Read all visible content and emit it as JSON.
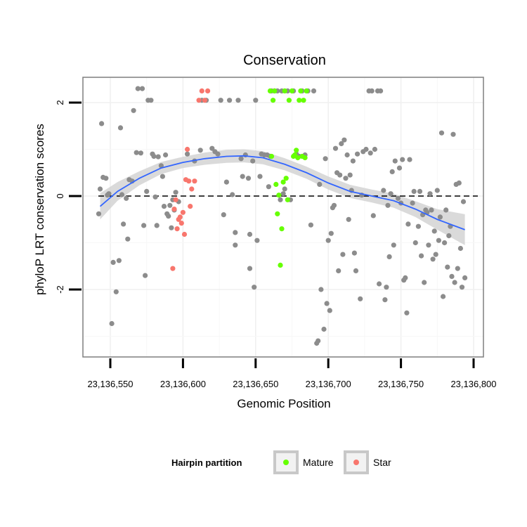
{
  "chart_data": {
    "type": "scatter",
    "title": "Conservation",
    "xlabel": "Genomic Position",
    "ylabel": "phyloP LRT conservation scores",
    "xlim": [
      23136530,
      23136800
    ],
    "ylim": [
      -3.2,
      2.5
    ],
    "x_ticks": [
      {
        "value": 23136550,
        "label": "23,136,550"
      },
      {
        "value": 23136600,
        "label": "23,136,600"
      },
      {
        "value": 23136650,
        "label": "23,136,650"
      },
      {
        "value": 23136700,
        "label": "23,136,700"
      },
      {
        "value": 23136750,
        "label": "23,136,750"
      },
      {
        "value": 23136800,
        "label": "23,136,800"
      }
    ],
    "y_ticks": [
      {
        "value": 2,
        "label": "2"
      },
      {
        "value": 0,
        "label": "0"
      },
      {
        "value": -2,
        "label": "-2"
      }
    ],
    "reference_line": {
      "y": 0,
      "style": "dashed"
    },
    "grid": true,
    "legend": {
      "title": "Hairpin partition",
      "position": "bottom",
      "entries": [
        {
          "label": "Mature",
          "color": "#66ff00"
        },
        {
          "label": "Star",
          "color": "#f8766d"
        }
      ]
    },
    "colors": {
      "other": "#8c8c8c",
      "mature": "#66ff00",
      "star": "#f8766d",
      "smooth": "#3366ff",
      "band": "#d3d3d3"
    },
    "series": [
      {
        "group": "other",
        "points": [
          [
            23136542,
            -0.38
          ],
          [
            23136543,
            0.15
          ],
          [
            23136544,
            1.55
          ],
          [
            23136545,
            0.4
          ],
          [
            23136547,
            0.38
          ],
          [
            23136548,
            0.02
          ],
          [
            23136549,
            0.05
          ],
          [
            23136551,
            -2.73
          ],
          [
            23136552,
            -1.42
          ],
          [
            23136554,
            -2.05
          ],
          [
            23136556,
            -1.38
          ],
          [
            23136557,
            1.46
          ],
          [
            23136558,
            0.03
          ],
          [
            23136559,
            -0.6
          ],
          [
            23136561,
            -0.05
          ],
          [
            23136562,
            -0.92
          ],
          [
            23136563,
            0.35
          ],
          [
            23136565,
            0.32
          ],
          [
            23136566,
            1.83
          ],
          [
            23136568,
            0.93
          ],
          [
            23136569,
            2.3
          ],
          [
            23136571,
            0.92
          ],
          [
            23136572,
            2.3
          ],
          [
            23136573,
            -0.63
          ],
          [
            23136574,
            -1.7
          ],
          [
            23136575,
            0.1
          ],
          [
            23136576,
            2.05
          ],
          [
            23136578,
            2.05
          ],
          [
            23136579,
            0.9
          ],
          [
            23136580,
            0.85
          ],
          [
            23136581,
            -0.02
          ],
          [
            23136582,
            -0.63
          ],
          [
            23136583,
            0.84
          ],
          [
            23136585,
            0.65
          ],
          [
            23136586,
            0.42
          ],
          [
            23136587,
            -0.22
          ],
          [
            23136588,
            0.88
          ],
          [
            23136589,
            -0.38
          ],
          [
            23136590,
            -0.43
          ],
          [
            23136591,
            -0.2
          ],
          [
            23136592,
            -0.68
          ],
          [
            23136593,
            -0.08
          ],
          [
            23136594,
            -0.3
          ],
          [
            23136595,
            0.08
          ],
          [
            23136597,
            -0.12
          ],
          [
            23136603,
            0.9
          ],
          [
            23136608,
            0.75
          ],
          [
            23136612,
            0.98
          ],
          [
            23136613,
            2.05
          ],
          [
            23136616,
            2.05
          ],
          [
            23136620,
            1.02
          ],
          [
            23136622,
            0.95
          ],
          [
            23136624,
            0.9
          ],
          [
            23136626,
            2.05
          ],
          [
            23136628,
            -0.4
          ],
          [
            23136630,
            0.3
          ],
          [
            23136632,
            2.05
          ],
          [
            23136634,
            0.03
          ],
          [
            23136636,
            -1.05
          ],
          [
            23136636,
            -0.78
          ],
          [
            23136638,
            2.05
          ],
          [
            23136640,
            0.8
          ],
          [
            23136641,
            0.42
          ],
          [
            23136643,
            0.88
          ],
          [
            23136645,
            0.38
          ],
          [
            23136646,
            -0.82
          ],
          [
            23136646,
            -1.55
          ],
          [
            23136648,
            0.75
          ],
          [
            23136649,
            -1.95
          ],
          [
            23136650,
            2.05
          ],
          [
            23136651,
            -0.95
          ],
          [
            23136653,
            0.42
          ],
          [
            23136654,
            0.9
          ],
          [
            23136656,
            0.88
          ],
          [
            23136658,
            0.88
          ],
          [
            23136659,
            0.2
          ],
          [
            23136660,
            0.85
          ],
          [
            23136661,
            2.25
          ],
          [
            23136663,
            2.25
          ],
          [
            23136665,
            2.25
          ],
          [
            23136667,
            -0.08
          ],
          [
            23136668,
            2.25
          ],
          [
            23136669,
            0.05
          ],
          [
            23136670,
            0.15
          ],
          [
            23136672,
            2.25
          ],
          [
            23136674,
            -0.08
          ],
          [
            23136676,
            2.25
          ],
          [
            23136678,
            0.9
          ],
          [
            23136680,
            0.85
          ],
          [
            23136682,
            2.25
          ],
          [
            23136684,
            0.88
          ],
          [
            23136686,
            2.25
          ],
          [
            23136688,
            -0.62
          ],
          [
            23136690,
            2.25
          ],
          [
            23136692,
            -3.15
          ],
          [
            23136693,
            -3.1
          ],
          [
            23136694,
            0.25
          ],
          [
            23136695,
            -2.0
          ],
          [
            23136697,
            -2.85
          ],
          [
            23136698,
            0.8
          ],
          [
            23136699,
            -2.3
          ],
          [
            23136700,
            -0.95
          ],
          [
            23136701,
            -2.45
          ],
          [
            23136702,
            -0.8
          ],
          [
            23136703,
            -0.25
          ],
          [
            23136704,
            -0.2
          ],
          [
            23136705,
            1.02
          ],
          [
            23136706,
            0.5
          ],
          [
            23136707,
            -1.6
          ],
          [
            23136708,
            0.45
          ],
          [
            23136709,
            1.12
          ],
          [
            23136710,
            -1.25
          ],
          [
            23136711,
            1.2
          ],
          [
            23136712,
            0.38
          ],
          [
            23136713,
            0.88
          ],
          [
            23136714,
            -0.5
          ],
          [
            23136715,
            0.45
          ],
          [
            23136716,
            0.12
          ],
          [
            23136717,
            0.75
          ],
          [
            23136718,
            -1.22
          ],
          [
            23136719,
            -1.6
          ],
          [
            23136720,
            0.9
          ],
          [
            23136722,
            -2.2
          ],
          [
            23136723,
            0.02
          ],
          [
            23136724,
            0.95
          ],
          [
            23136726,
            1.0
          ],
          [
            23136728,
            2.25
          ],
          [
            23136729,
            0.92
          ],
          [
            23136730,
            2.25
          ],
          [
            23136731,
            -0.42
          ],
          [
            23136732,
            1.0
          ],
          [
            23136734,
            2.25
          ],
          [
            23136735,
            -1.88
          ],
          [
            23136736,
            2.25
          ],
          [
            23136738,
            0.12
          ],
          [
            23136739,
            -2.22
          ],
          [
            23136740,
            -1.95
          ],
          [
            23136741,
            -0.2
          ],
          [
            23136742,
            -1.3
          ],
          [
            23136743,
            0.05
          ],
          [
            23136744,
            0.52
          ],
          [
            23136745,
            -1.05
          ],
          [
            23136746,
            0.75
          ],
          [
            23136748,
            -0.05
          ],
          [
            23136749,
            0.6
          ],
          [
            23136750,
            -0.15
          ],
          [
            23136751,
            0.78
          ],
          [
            23136752,
            -1.8
          ],
          [
            23136753,
            -1.75
          ],
          [
            23136754,
            -2.5
          ],
          [
            23136755,
            -0.6
          ],
          [
            23136756,
            0.78
          ],
          [
            23136758,
            -0.15
          ],
          [
            23136759,
            0.1
          ],
          [
            23136760,
            -1.0
          ],
          [
            23136762,
            -0.65
          ],
          [
            23136763,
            0.1
          ],
          [
            23136764,
            -1.28
          ],
          [
            23136765,
            -0.4
          ],
          [
            23136766,
            -1.85
          ],
          [
            23136767,
            -0.3
          ],
          [
            23136768,
            -0.35
          ],
          [
            23136769,
            -1.05
          ],
          [
            23136770,
            0.05
          ],
          [
            23136771,
            -0.3
          ],
          [
            23136772,
            -1.35
          ],
          [
            23136773,
            -0.75
          ],
          [
            23136774,
            -1.25
          ],
          [
            23136775,
            0.12
          ],
          [
            23136776,
            -0.95
          ],
          [
            23136777,
            -0.45
          ],
          [
            23136778,
            1.35
          ],
          [
            23136779,
            -2.15
          ],
          [
            23136780,
            -1.0
          ],
          [
            23136781,
            -0.3
          ],
          [
            23136782,
            -1.52
          ],
          [
            23136783,
            -0.85
          ],
          [
            23136784,
            -0.65
          ],
          [
            23136785,
            -1.72
          ],
          [
            23136786,
            1.32
          ],
          [
            23136787,
            -1.85
          ],
          [
            23136788,
            0.25
          ],
          [
            23136789,
            -1.55
          ],
          [
            23136790,
            0.28
          ],
          [
            23136791,
            -1.12
          ],
          [
            23136792,
            -1.95
          ],
          [
            23136793,
            -0.12
          ],
          [
            23136794,
            -1.75
          ]
        ]
      },
      {
        "group": "star",
        "points": [
          [
            23136593,
            -1.55
          ],
          [
            23136594,
            -0.28
          ],
          [
            23136595,
            -0.08
          ],
          [
            23136596,
            -0.7
          ],
          [
            23136597,
            -0.5
          ],
          [
            23136598,
            -0.45
          ],
          [
            23136599,
            -0.58
          ],
          [
            23136600,
            -0.35
          ],
          [
            23136601,
            -0.82
          ],
          [
            23136602,
            0.35
          ],
          [
            23136603,
            1.0
          ],
          [
            23136604,
            0.32
          ],
          [
            23136605,
            -0.22
          ],
          [
            23136606,
            0.15
          ],
          [
            23136608,
            0.32
          ],
          [
            23136611,
            2.05
          ],
          [
            23136613,
            2.25
          ],
          [
            23136615,
            2.05
          ],
          [
            23136617,
            2.25
          ]
        ]
      },
      {
        "group": "mature",
        "points": [
          [
            23136660,
            2.25
          ],
          [
            23136661,
            0.85
          ],
          [
            23136662,
            2.05
          ],
          [
            23136663,
            2.25
          ],
          [
            23136664,
            0.25
          ],
          [
            23136665,
            -0.38
          ],
          [
            23136666,
            0.02
          ],
          [
            23136667,
            -1.48
          ],
          [
            23136668,
            -0.7
          ],
          [
            23136669,
            0.3
          ],
          [
            23136670,
            2.25
          ],
          [
            23136671,
            0.38
          ],
          [
            23136672,
            -0.08
          ],
          [
            23136673,
            2.05
          ],
          [
            23136675,
            2.25
          ],
          [
            23136676,
            0.85
          ],
          [
            23136677,
            0.88
          ],
          [
            23136678,
            0.98
          ],
          [
            23136679,
            0.82
          ],
          [
            23136680,
            2.05
          ],
          [
            23136681,
            2.25
          ],
          [
            23136682,
            0.85
          ],
          [
            23136683,
            2.05
          ],
          [
            23136684,
            0.82
          ],
          [
            23136685,
            2.25
          ]
        ]
      }
    ],
    "smooth": [
      {
        "x": 23136543,
        "y": -0.22,
        "lo": -0.5,
        "hi": 0.06
      },
      {
        "x": 23136555,
        "y": 0.1,
        "lo": -0.1,
        "hi": 0.3
      },
      {
        "x": 23136570,
        "y": 0.38,
        "lo": 0.23,
        "hi": 0.53
      },
      {
        "x": 23136585,
        "y": 0.6,
        "lo": 0.47,
        "hi": 0.73
      },
      {
        "x": 23136600,
        "y": 0.72,
        "lo": 0.6,
        "hi": 0.84
      },
      {
        "x": 23136615,
        "y": 0.8,
        "lo": 0.67,
        "hi": 0.93
      },
      {
        "x": 23136630,
        "y": 0.85,
        "lo": 0.71,
        "hi": 0.99
      },
      {
        "x": 23136642,
        "y": 0.86,
        "lo": 0.72,
        "hi": 1.0
      },
      {
        "x": 23136655,
        "y": 0.82,
        "lo": 0.68,
        "hi": 0.96
      },
      {
        "x": 23136670,
        "y": 0.68,
        "lo": 0.55,
        "hi": 0.81
      },
      {
        "x": 23136685,
        "y": 0.5,
        "lo": 0.37,
        "hi": 0.63
      },
      {
        "x": 23136700,
        "y": 0.28,
        "lo": 0.14,
        "hi": 0.42
      },
      {
        "x": 23136715,
        "y": 0.1,
        "lo": -0.04,
        "hi": 0.24
      },
      {
        "x": 23136730,
        "y": 0.0,
        "lo": -0.14,
        "hi": 0.14
      },
      {
        "x": 23136745,
        "y": -0.1,
        "lo": -0.25,
        "hi": 0.05
      },
      {
        "x": 23136760,
        "y": -0.28,
        "lo": -0.45,
        "hi": -0.11
      },
      {
        "x": 23136775,
        "y": -0.5,
        "lo": -0.72,
        "hi": -0.28
      },
      {
        "x": 23136794,
        "y": -0.72,
        "lo": -1.05,
        "hi": -0.39
      }
    ]
  }
}
